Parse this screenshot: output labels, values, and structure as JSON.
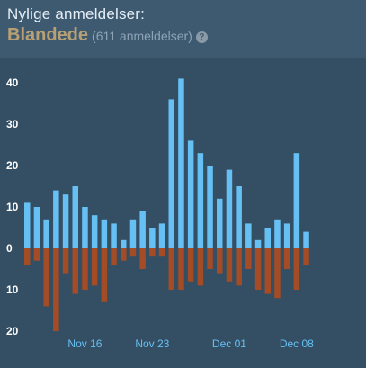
{
  "header": {
    "title": "Nylige anmeldelser:",
    "summary": "Blandede",
    "count": "(611 anmeldelser)",
    "help": "?"
  },
  "colors": {
    "positive": "#66c0f4",
    "negative": "#a34c25",
    "summary": "#b9a074"
  },
  "chart_data": {
    "type": "bar",
    "title": "",
    "xlabel": "",
    "ylabel": "",
    "ylim": [
      -20,
      40
    ],
    "yticks": [
      {
        "value": 40,
        "label": "40"
      },
      {
        "value": 30,
        "label": "30"
      },
      {
        "value": 20,
        "label": "20"
      },
      {
        "value": 10,
        "label": "10"
      },
      {
        "value": 0,
        "label": "0"
      },
      {
        "value": -10,
        "label": "10"
      },
      {
        "value": -20,
        "label": "20"
      }
    ],
    "xticks": [
      {
        "index": 6,
        "label": "Nov 16"
      },
      {
        "index": 13,
        "label": "Nov 23"
      },
      {
        "index": 21,
        "label": "Dec 01"
      },
      {
        "index": 28,
        "label": "Dec 08"
      }
    ],
    "positive": [
      11,
      10,
      7,
      14,
      13,
      15,
      10,
      8,
      7,
      6,
      2,
      7,
      9,
      5,
      6,
      36,
      41,
      26,
      23,
      20,
      12,
      19,
      15,
      6,
      2,
      5,
      7,
      6,
      23,
      4
    ],
    "negative": [
      4,
      3,
      14,
      20,
      6,
      11,
      10,
      9,
      13,
      4,
      3,
      2,
      5,
      2,
      2,
      10,
      10,
      8,
      9,
      5,
      6,
      8,
      9,
      5,
      10,
      11,
      12,
      5,
      10,
      4
    ]
  }
}
